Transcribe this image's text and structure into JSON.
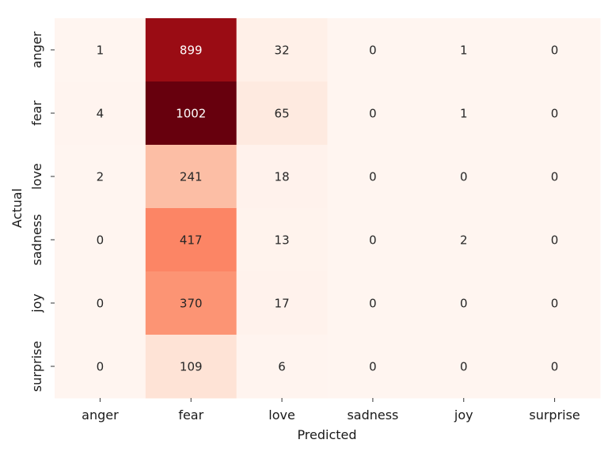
{
  "chart_data": {
    "type": "heatmap",
    "title": "",
    "xlabel": "Predicted",
    "ylabel": "Actual",
    "x_categories": [
      "anger",
      "fear",
      "love",
      "sadness",
      "joy",
      "surprise"
    ],
    "y_categories": [
      "anger",
      "fear",
      "love",
      "sadness",
      "joy",
      "surprise"
    ],
    "values": [
      [
        1,
        899,
        32,
        0,
        1,
        0
      ],
      [
        4,
        1002,
        65,
        0,
        1,
        0
      ],
      [
        2,
        241,
        18,
        0,
        0,
        0
      ],
      [
        0,
        417,
        13,
        0,
        2,
        0
      ],
      [
        0,
        370,
        17,
        0,
        0,
        0
      ],
      [
        0,
        109,
        6,
        0,
        0,
        0
      ]
    ],
    "colormap": "Reds",
    "vmin": 0,
    "vmax": 1002,
    "colorbar": false,
    "grid": false
  }
}
